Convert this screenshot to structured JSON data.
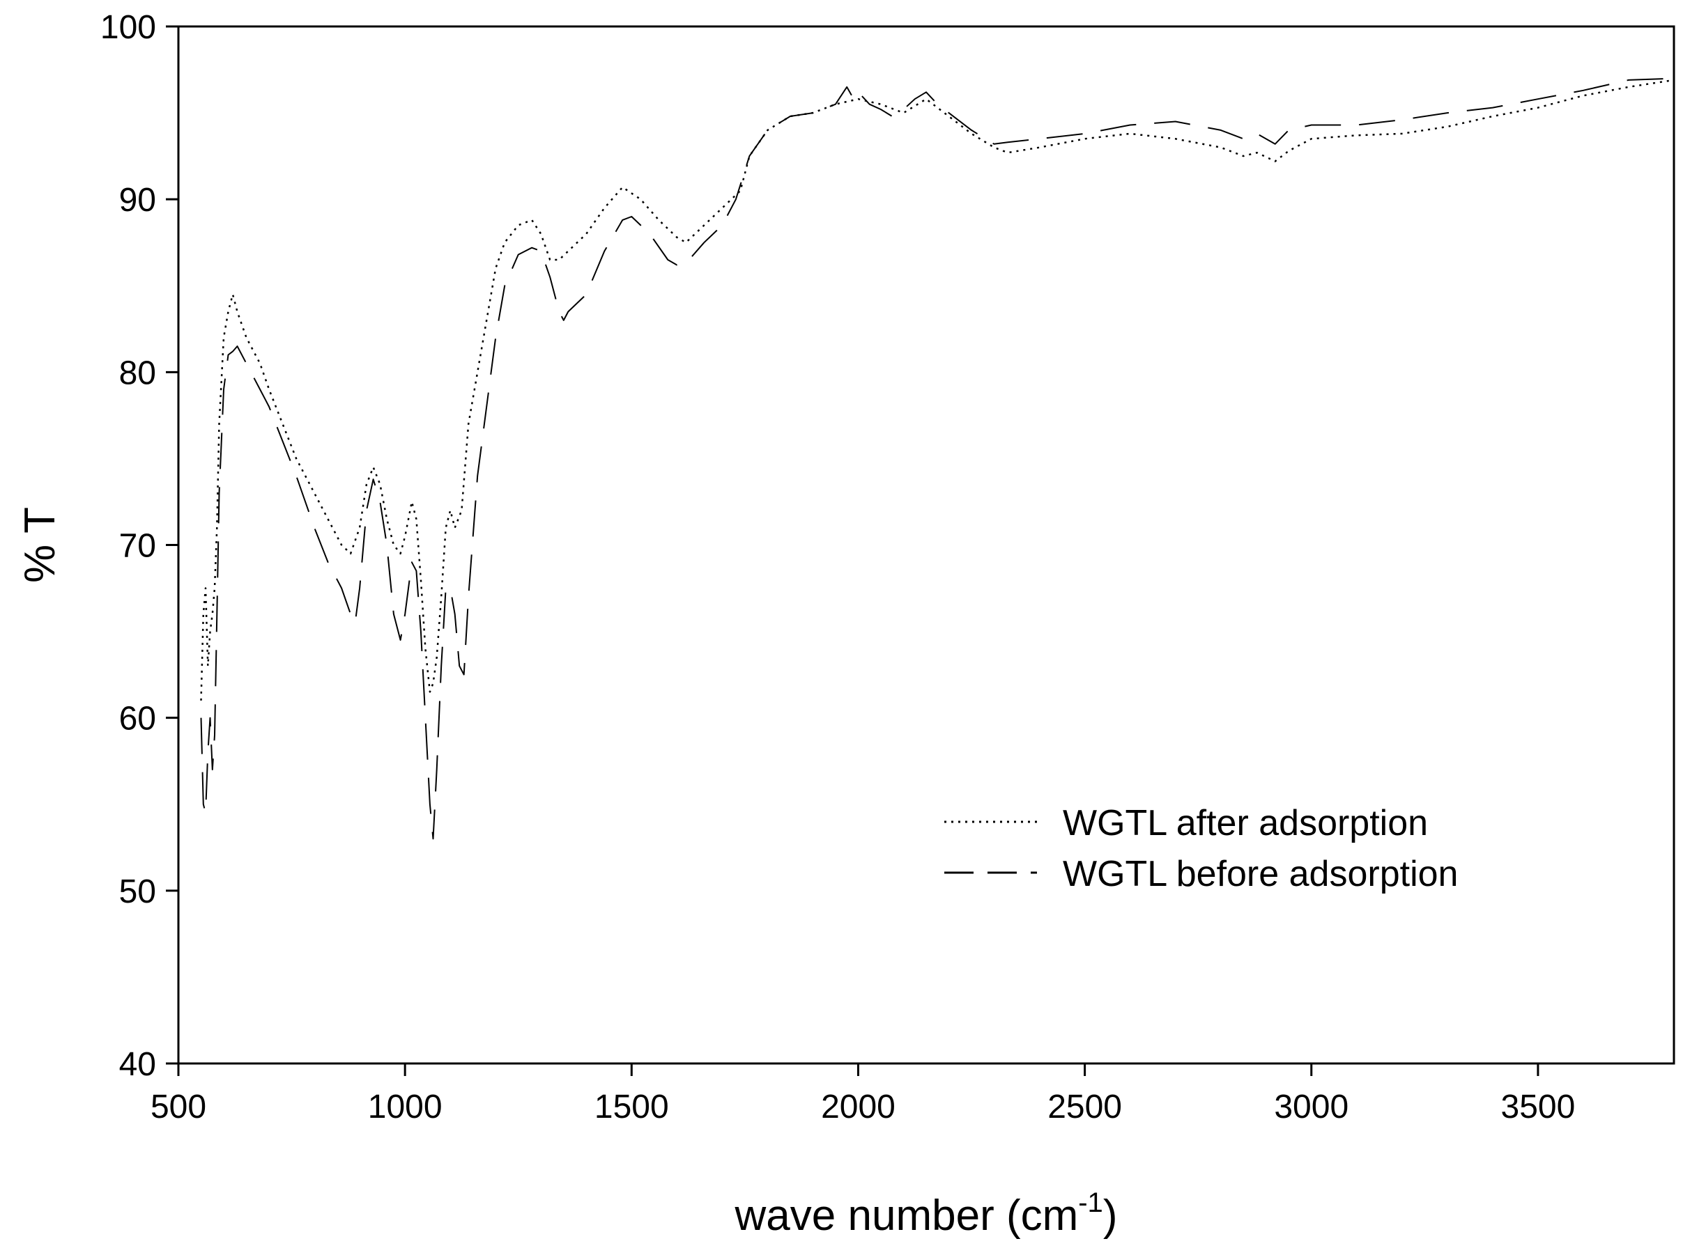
{
  "chart_data": {
    "type": "line",
    "title": "",
    "xlabel": "wave number (cm",
    "xlabel_sup": "-1",
    "xlabel_suffix": ")",
    "ylabel": "% T",
    "xlim": [
      500,
      3800
    ],
    "ylim": [
      40,
      100
    ],
    "xticks": [
      500,
      1000,
      1500,
      2000,
      2500,
      3000,
      3500
    ],
    "yticks": [
      40,
      50,
      60,
      70,
      80,
      90,
      100
    ],
    "grid": false,
    "legend_position": "lower-right",
    "series": [
      {
        "name": "WGTL after adsorption",
        "style": "dotted",
        "color": "#000000",
        "x": [
          550,
          555,
          560,
          565,
          570,
          575,
          580,
          585,
          590,
          600,
          610,
          620,
          630,
          650,
          680,
          700,
          730,
          760,
          800,
          830,
          860,
          880,
          900,
          915,
          930,
          945,
          960,
          975,
          990,
          1000,
          1015,
          1025,
          1035,
          1045,
          1055,
          1062,
          1070,
          1080,
          1090,
          1100,
          1110,
          1125,
          1140,
          1160,
          1180,
          1200,
          1220,
          1250,
          1280,
          1300,
          1320,
          1340,
          1360,
          1400,
          1440,
          1480,
          1520,
          1560,
          1600,
          1620,
          1660,
          1700,
          1740,
          1760,
          1800,
          1850,
          1900,
          1950,
          2000,
          2050,
          2100,
          2150,
          2200,
          2250,
          2300,
          2330,
          2400,
          2500,
          2600,
          2700,
          2800,
          2850,
          2880,
          2920,
          2950,
          3000,
          3100,
          3200,
          3300,
          3400,
          3500,
          3600,
          3700,
          3800
        ],
        "y": [
          61,
          66,
          67.5,
          63,
          65,
          66,
          67.5,
          71,
          77,
          82,
          83.5,
          84.5,
          83.5,
          82,
          80.5,
          79,
          77,
          75,
          73,
          71.5,
          70,
          69.5,
          71,
          73.5,
          74.5,
          73.5,
          71.5,
          70,
          69.5,
          70.5,
          72.5,
          71.5,
          68,
          64,
          61.5,
          62,
          63.5,
          67,
          71,
          72,
          71,
          72,
          77,
          80,
          83,
          86,
          87.5,
          88.5,
          88.8,
          88,
          86.5,
          86.5,
          87,
          88,
          89.5,
          90.7,
          90,
          88.8,
          87.8,
          87.5,
          88.5,
          89.5,
          90.5,
          92.5,
          94,
          94.8,
          95,
          95.5,
          95.8,
          95.5,
          95,
          95.8,
          94.8,
          93.8,
          93,
          92.7,
          93,
          93.5,
          93.8,
          93.5,
          93,
          92.5,
          92.7,
          92.2,
          92.8,
          93.5,
          93.7,
          93.8,
          94.2,
          94.8,
          95.3,
          96,
          96.5,
          96.9
        ]
      },
      {
        "name": "WGTL before adsorption",
        "style": "long-dash",
        "color": "#000000",
        "x": [
          550,
          555,
          560,
          565,
          570,
          575,
          580,
          585,
          590,
          600,
          610,
          620,
          630,
          650,
          680,
          700,
          730,
          760,
          800,
          830,
          860,
          880,
          890,
          900,
          915,
          930,
          945,
          960,
          975,
          990,
          1000,
          1015,
          1025,
          1035,
          1045,
          1055,
          1062,
          1070,
          1080,
          1090,
          1100,
          1110,
          1120,
          1130,
          1140,
          1160,
          1180,
          1200,
          1220,
          1250,
          1280,
          1300,
          1320,
          1340,
          1350,
          1360,
          1400,
          1440,
          1480,
          1500,
          1540,
          1580,
          1600,
          1620,
          1660,
          1700,
          1730,
          1760,
          1800,
          1850,
          1900,
          1950,
          1975,
          1990,
          2000,
          2025,
          2050,
          2075,
          2100,
          2125,
          2150,
          2175,
          2200,
          2250,
          2300,
          2330,
          2400,
          2500,
          2600,
          2700,
          2800,
          2850,
          2880,
          2920,
          2950,
          3000,
          3100,
          3200,
          3300,
          3400,
          3500,
          3600,
          3700,
          3800
        ],
        "y": [
          60,
          55,
          54.5,
          58,
          60,
          57,
          59,
          66,
          73,
          79,
          81,
          81.2,
          81.5,
          80.5,
          79,
          78,
          76,
          74,
          71,
          69,
          67.5,
          66,
          65.5,
          67.5,
          72,
          73.8,
          72.5,
          70,
          66,
          64.5,
          66,
          69,
          68.5,
          65,
          60,
          55,
          53,
          57,
          63,
          67.5,
          67.5,
          66,
          63,
          62.5,
          67,
          74,
          78,
          82,
          85,
          86.8,
          87.2,
          87,
          85.5,
          83.5,
          83,
          83.5,
          84.5,
          87,
          88.8,
          89,
          88,
          86.5,
          86.2,
          86.3,
          87.5,
          88.5,
          90,
          92.5,
          94,
          94.8,
          95,
          95.5,
          96.5,
          95.8,
          96.2,
          95.5,
          95.2,
          94.8,
          95.2,
          95.8,
          96.2,
          95.5,
          95,
          94,
          93.2,
          93.3,
          93.5,
          93.8,
          94.3,
          94.5,
          94,
          93.5,
          93.8,
          93.2,
          94,
          94.3,
          94.3,
          94.6,
          95,
          95.3,
          95.8,
          96.3,
          96.9,
          97
        ]
      }
    ]
  }
}
